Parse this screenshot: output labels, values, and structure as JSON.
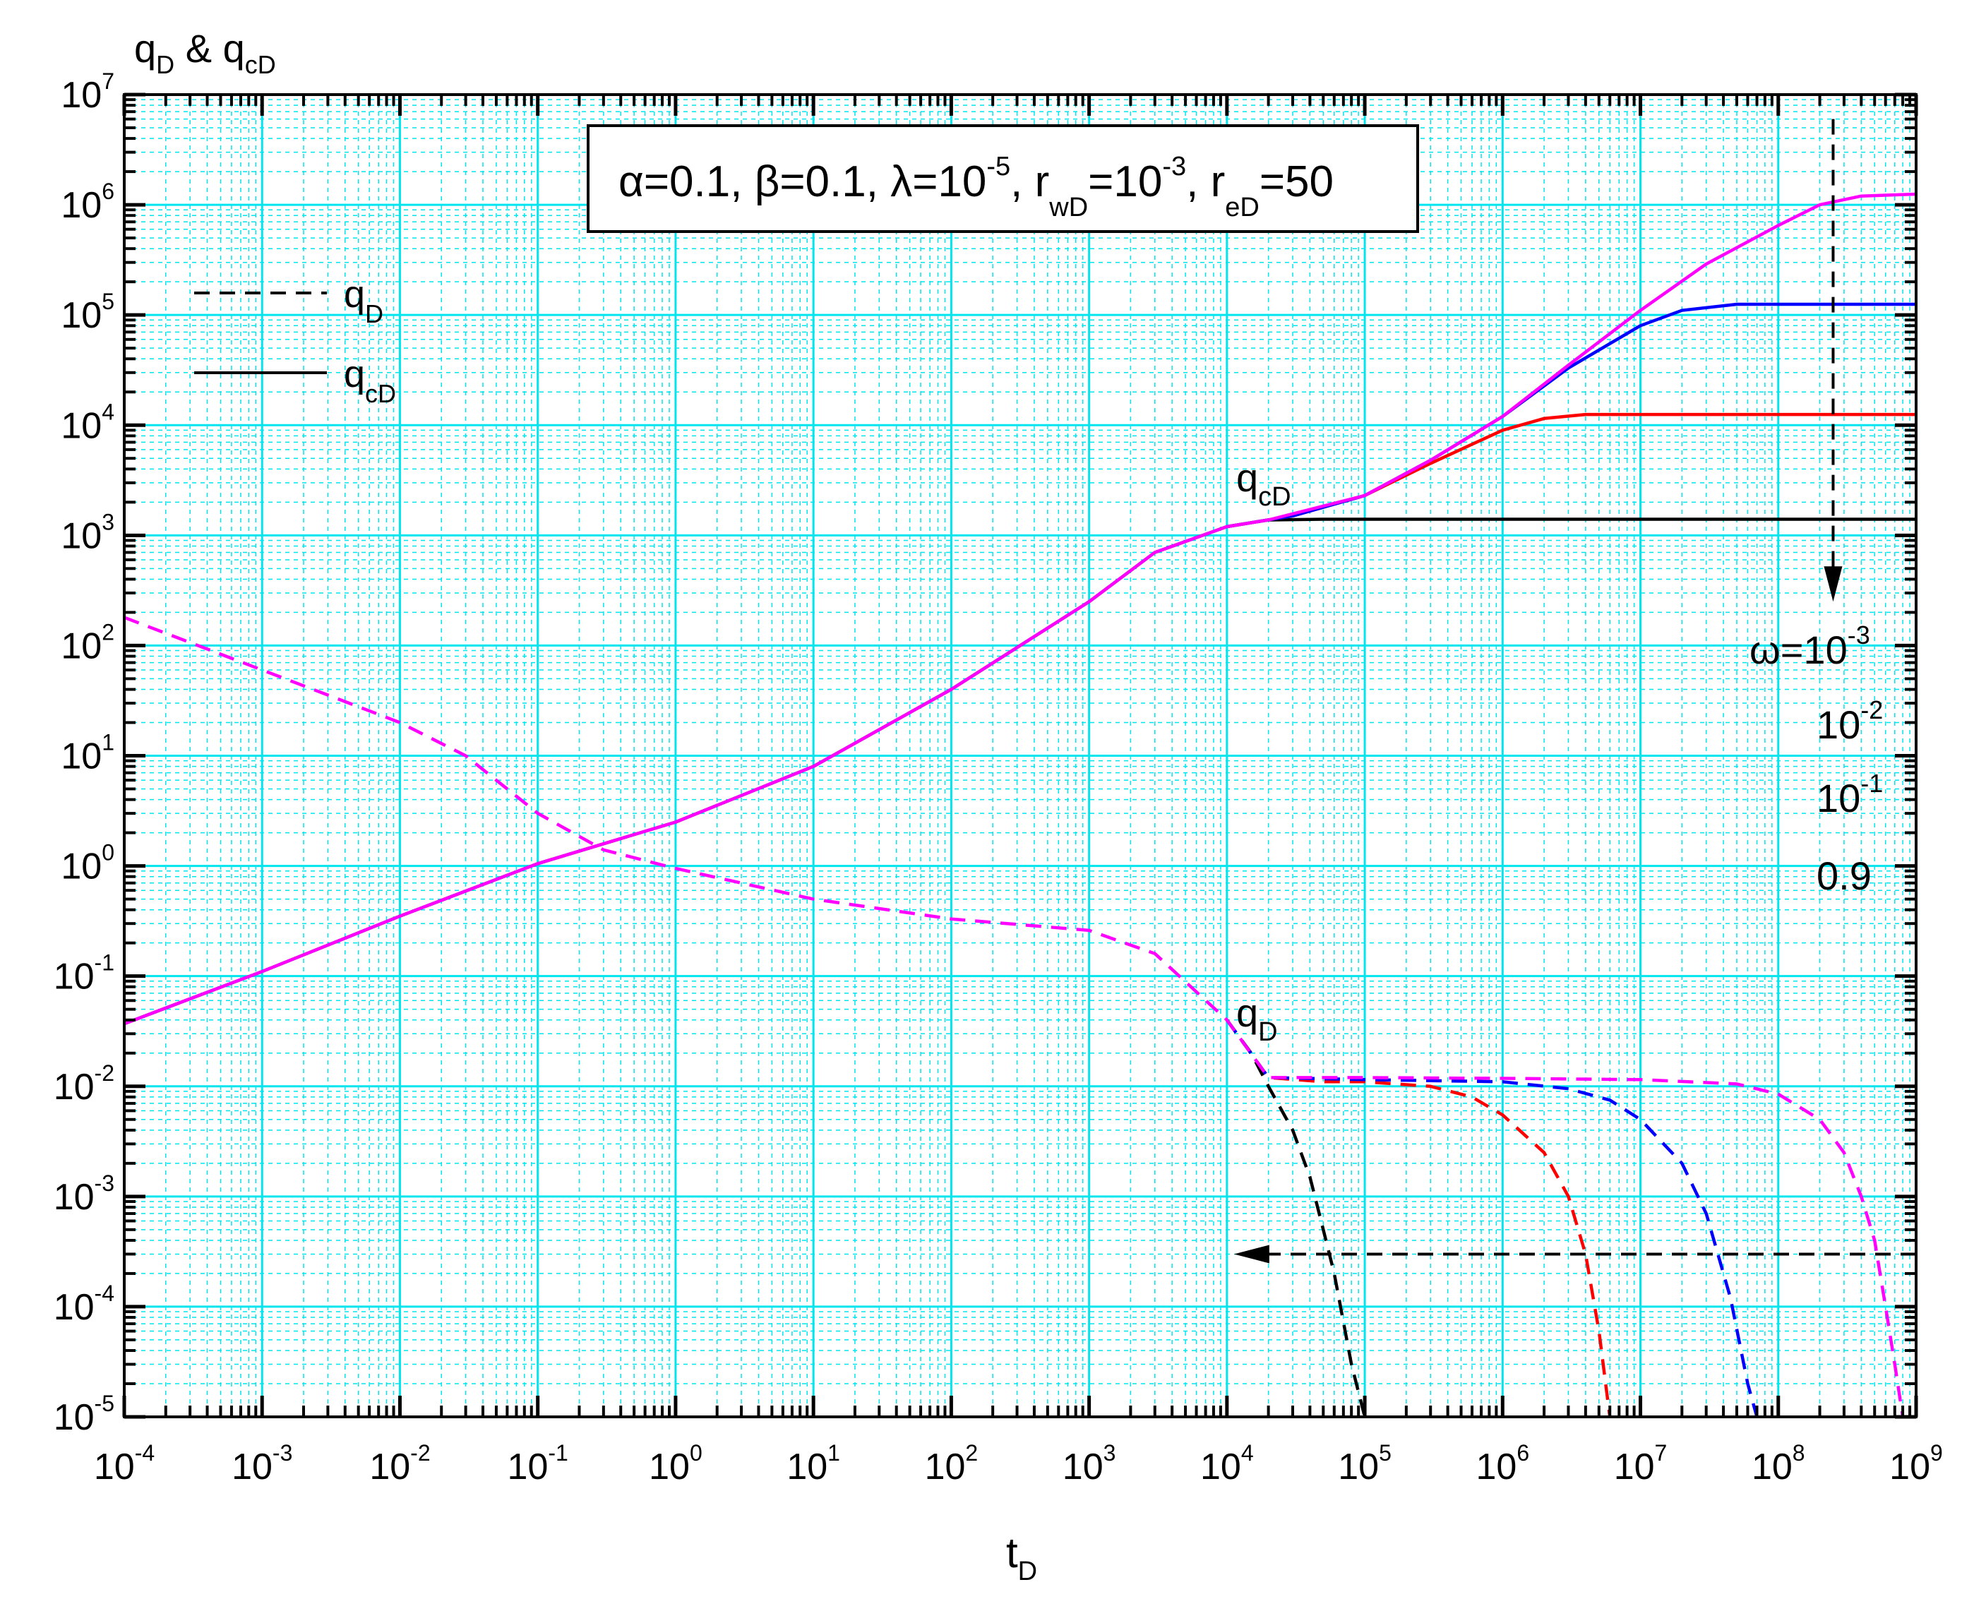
{
  "chart_data": {
    "type": "line",
    "x_scale": "log",
    "y_scale": "log",
    "xlim": [
      0.0001,
      1000000000
    ],
    "ylim": [
      1e-05,
      10000000
    ],
    "grid": true,
    "colors": {
      "grid": "#00e5ee",
      "omega_0.001": "#ff00ff",
      "omega_0.01": "#0000ff",
      "omega_0.1": "#ff0000",
      "omega_0.9": "#000000"
    },
    "ylabel": {
      "base": "q",
      "sub1": "D",
      "mid": " & q",
      "sub2": "cD"
    },
    "xlabel": {
      "base": "t",
      "sub": "D"
    },
    "x_ticks": [
      {
        "value": 0.0001,
        "base": "10",
        "exp": "-4"
      },
      {
        "value": 0.001,
        "base": "10",
        "exp": "-3"
      },
      {
        "value": 0.01,
        "base": "10",
        "exp": "-2"
      },
      {
        "value": 0.1,
        "base": "10",
        "exp": "-1"
      },
      {
        "value": 1,
        "base": "10",
        "exp": "0"
      },
      {
        "value": 10,
        "base": "10",
        "exp": "1"
      },
      {
        "value": 100,
        "base": "10",
        "exp": "2"
      },
      {
        "value": 1000,
        "base": "10",
        "exp": "3"
      },
      {
        "value": 10000,
        "base": "10",
        "exp": "4"
      },
      {
        "value": 100000,
        "base": "10",
        "exp": "5"
      },
      {
        "value": 1000000,
        "base": "10",
        "exp": "6"
      },
      {
        "value": 10000000,
        "base": "10",
        "exp": "7"
      },
      {
        "value": 100000000,
        "base": "10",
        "exp": "8"
      },
      {
        "value": 1000000000,
        "base": "10",
        "exp": "9"
      }
    ],
    "y_ticks": [
      {
        "value": 1e-05,
        "base": "10",
        "exp": "-5"
      },
      {
        "value": 0.0001,
        "base": "10",
        "exp": "-4"
      },
      {
        "value": 0.001,
        "base": "10",
        "exp": "-3"
      },
      {
        "value": 0.01,
        "base": "10",
        "exp": "-2"
      },
      {
        "value": 0.1,
        "base": "10",
        "exp": "-1"
      },
      {
        "value": 1,
        "base": "10",
        "exp": "0"
      },
      {
        "value": 10,
        "base": "10",
        "exp": "1"
      },
      {
        "value": 100,
        "base": "10",
        "exp": "2"
      },
      {
        "value": 1000,
        "base": "10",
        "exp": "3"
      },
      {
        "value": 10000,
        "base": "10",
        "exp": "4"
      },
      {
        "value": 100000,
        "base": "10",
        "exp": "5"
      },
      {
        "value": 1000000,
        "base": "10",
        "exp": "6"
      },
      {
        "value": 10000000,
        "base": "10",
        "exp": "7"
      }
    ],
    "parameter_box": {
      "segments": [
        {
          "text": "α=0.1, β=0.1, λ=10",
          "style": "normal"
        },
        {
          "text": "-5",
          "style": "sup"
        },
        {
          "text": ", r",
          "style": "normal"
        },
        {
          "text": "wD",
          "style": "sub"
        },
        {
          "text": "=10",
          "style": "normal"
        },
        {
          "text": "-3",
          "style": "sup"
        },
        {
          "text": ", r",
          "style": "normal"
        },
        {
          "text": "eD",
          "style": "sub"
        },
        {
          "text": "=50",
          "style": "normal"
        }
      ]
    },
    "legend": [
      {
        "base": "q",
        "sub": "D",
        "dash": "dashed"
      },
      {
        "base": "q",
        "sub": "cD",
        "dash": "solid"
      }
    ],
    "annotations": {
      "qcd_label": {
        "base": "q",
        "sub": "cD",
        "x": 30000,
        "y": 2500
      },
      "qd_label": {
        "base": "q",
        "sub": "D",
        "x": 30000,
        "y": 0.035
      },
      "omega_labels": [
        {
          "base": "ω=10",
          "exp": "-3"
        },
        {
          "base": "10",
          "exp": "-2"
        },
        {
          "base": "10",
          "exp": "-1"
        },
        {
          "base": "0.9",
          "exp": ""
        }
      ],
      "arrow_down": {
        "x": 250000000,
        "y_from": 6000000,
        "y_to": 250
      },
      "arrow_left": {
        "y": 0.0003,
        "x_from": 1000000000,
        "x_to": 10000
      }
    },
    "series": [
      {
        "kind": "qcD",
        "omega": "0.9",
        "color": "#000000",
        "dash": "solid",
        "x": [
          0.0001,
          0.001,
          0.01,
          0.1,
          1,
          10,
          100,
          1000,
          3000,
          10000,
          20000,
          50000,
          100000,
          1000000,
          10000000,
          100000000,
          1000000000
        ],
        "y": [
          0.037,
          0.11,
          0.35,
          1.05,
          2.5,
          8,
          40,
          250,
          700,
          1200,
          1380,
          1400,
          1400,
          1400,
          1400,
          1400,
          1400
        ]
      },
      {
        "kind": "qcD",
        "omega": "0.1",
        "color": "#ff0000",
        "dash": "solid",
        "x": [
          10000,
          30000,
          100000,
          300000,
          1000000,
          2000000,
          4000000,
          10000000,
          100000000,
          1000000000
        ],
        "y": [
          1200,
          1500,
          2300,
          4500,
          9000,
          11500,
          12500,
          12500,
          12500,
          12500
        ]
      },
      {
        "kind": "qcD",
        "omega": "0.01",
        "color": "#0000ff",
        "dash": "solid",
        "x": [
          10000,
          30000,
          100000,
          300000,
          1000000,
          3000000,
          10000000,
          20000000,
          50000000,
          100000000,
          1000000000
        ],
        "y": [
          1200,
          1500,
          2300,
          4800,
          12000,
          33000,
          80000,
          110000,
          125000,
          125000,
          125000
        ]
      },
      {
        "kind": "qcD",
        "omega": "0.001",
        "color": "#ff00ff",
        "dash": "solid",
        "x": [
          0.0001,
          0.001,
          0.01,
          0.1,
          1,
          10,
          100,
          1000,
          3000,
          10000,
          20000,
          100000,
          300000,
          1000000,
          3000000,
          10000000,
          30000000,
          100000000,
          200000000,
          400000000,
          1000000000
        ],
        "y": [
          0.037,
          0.11,
          0.35,
          1.05,
          2.5,
          8,
          40,
          250,
          700,
          1200,
          1380,
          2300,
          4800,
          12000,
          35000,
          110000,
          290000,
          650000,
          1000000,
          1200000,
          1250000
        ]
      },
      {
        "kind": "qD",
        "omega": "0.9",
        "color": "#000000",
        "dash": "dashed",
        "x": [
          10000,
          15000,
          20000,
          30000,
          40000,
          50000,
          60000,
          80000,
          100000
        ],
        "y": [
          0.04,
          0.02,
          0.01,
          0.004,
          0.0015,
          0.0005,
          0.0002,
          3e-05,
          1e-05
        ]
      },
      {
        "kind": "qD",
        "omega": "0.1",
        "color": "#ff0000",
        "dash": "dashed",
        "x": [
          10000,
          20000,
          50000,
          100000,
          300000,
          600000,
          1000000,
          2000000,
          3000000,
          4000000,
          5000000,
          6000000
        ],
        "y": [
          0.04,
          0.012,
          0.011,
          0.011,
          0.01,
          0.008,
          0.0055,
          0.0025,
          0.001,
          0.0003,
          6e-05,
          1e-05
        ]
      },
      {
        "kind": "qD",
        "omega": "0.01",
        "color": "#0000ff",
        "dash": "dashed",
        "x": [
          10000,
          20000,
          100000,
          1000000,
          3000000,
          6000000,
          10000000,
          20000000,
          30000000,
          45000000,
          60000000,
          70000000
        ],
        "y": [
          0.04,
          0.012,
          0.0115,
          0.011,
          0.0095,
          0.0075,
          0.005,
          0.002,
          0.0007,
          0.00012,
          2e-05,
          1e-05
        ]
      },
      {
        "kind": "qD",
        "omega": "0.001",
        "color": "#ff00ff",
        "dash": "dashed",
        "x": [
          0.0001,
          0.001,
          0.01,
          0.03,
          0.1,
          0.3,
          1,
          10,
          100,
          1000,
          3000,
          10000,
          20000,
          100000,
          1000000,
          10000000,
          50000000,
          100000000,
          200000000,
          300000000,
          400000000,
          500000000,
          600000000,
          700000000,
          800000000
        ],
        "y": [
          180,
          60,
          20,
          10,
          3,
          1.4,
          0.95,
          0.5,
          0.33,
          0.26,
          0.16,
          0.04,
          0.012,
          0.012,
          0.0118,
          0.0115,
          0.0105,
          0.0085,
          0.005,
          0.0025,
          0.001,
          0.0004,
          0.0001,
          3e-05,
          1e-05
        ]
      }
    ]
  }
}
